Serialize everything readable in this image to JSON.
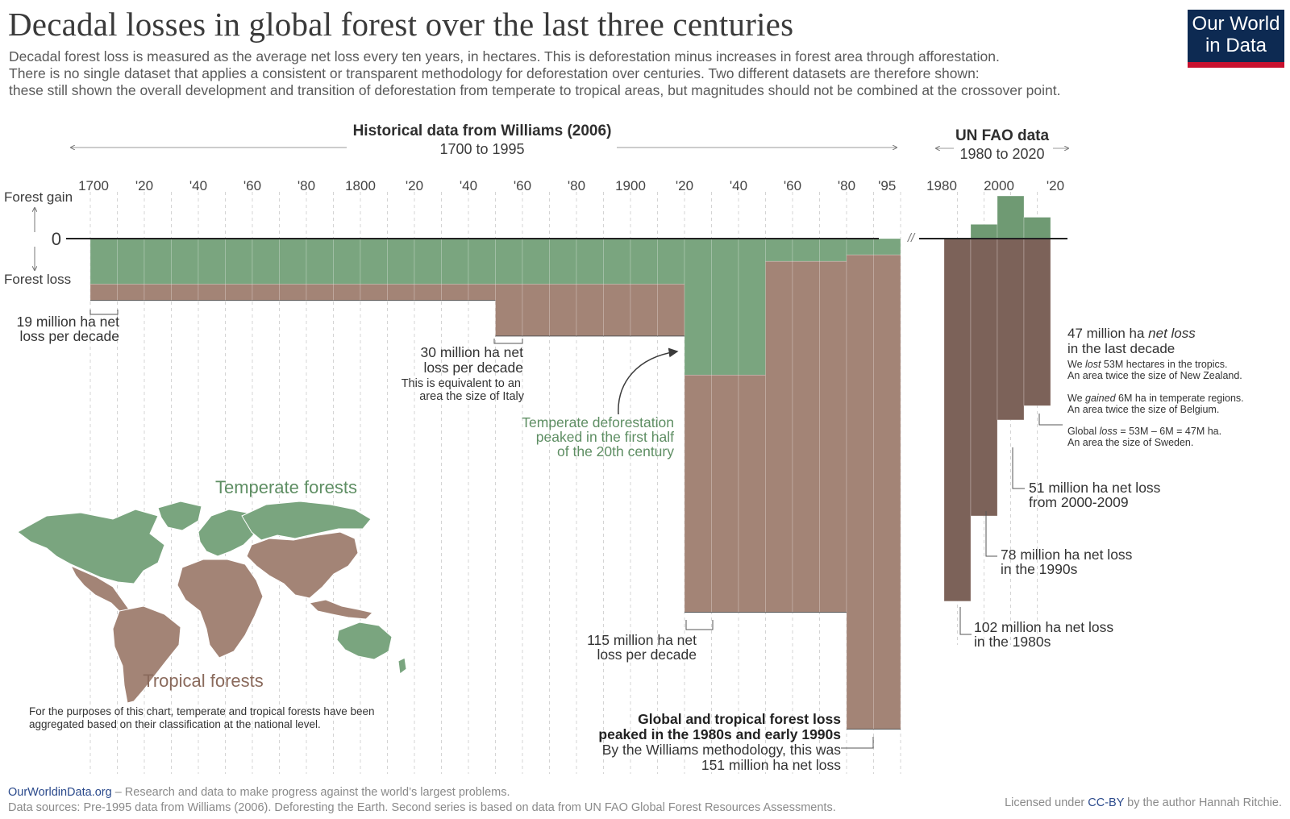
{
  "header": {
    "title": "Decadal losses in global forest over the last three centuries",
    "subtitle_lines": [
      "Decadal forest loss is measured as the average net loss every ten years, in hectares. This is deforestation minus increases in forest area through afforestation.",
      "There is no single dataset that applies a consistent or transparent methodology for deforestation over centuries. Two different datasets are therefore shown:",
      "these still shown the overall development and transition of deforestation from temperate to tropical areas, but magnitudes should not be combined at the crossover point."
    ]
  },
  "logo": {
    "line1": "Our World",
    "line2": "in Data"
  },
  "sections": {
    "williams": {
      "title": "Historical data from Williams (2006)",
      "range": "1700 to 1995"
    },
    "fao": {
      "title": "UN FAO data",
      "range": "1980 to 2020"
    }
  },
  "axis": {
    "gain_label": "Forest gain",
    "loss_label": "Forest loss",
    "zero_label": "0",
    "break_mark": "//"
  },
  "colors": {
    "temperate": "#7aa57f",
    "tropical": "#a38476",
    "fao_bars": "#7c6259",
    "fao_gain": "#6f9a73",
    "annotation_green": "#5e8e63",
    "grid": "#d4d4d4"
  },
  "chart_data": [
    {
      "type": "bar",
      "stacked": true,
      "units": "million hectares net loss per decade",
      "tick_labels": [
        "1700",
        "'20",
        "'40",
        "'60",
        "'80",
        "1800",
        "'20",
        "'40",
        "'60",
        "'80",
        "1900",
        "'20",
        "'40",
        "'60",
        "'80",
        "'95"
      ],
      "categories": [
        "1700",
        "1710",
        "1720",
        "1730",
        "1740",
        "1750",
        "1760",
        "1770",
        "1780",
        "1790",
        "1800",
        "1810",
        "1820",
        "1830",
        "1840",
        "1850",
        "1860",
        "1870",
        "1880",
        "1890",
        "1900",
        "1910",
        "1920",
        "1930",
        "1940",
        "1950",
        "1960",
        "1970",
        "1980",
        "1990"
      ],
      "series": [
        {
          "name": "Temperate forests",
          "values": [
            -14,
            -14,
            -14,
            -14,
            -14,
            -14,
            -14,
            -14,
            -14,
            -14,
            -14,
            -14,
            -14,
            -14,
            -14,
            -14,
            -14,
            -14,
            -14,
            -14,
            -14,
            -14,
            -42,
            -42,
            -42,
            -7,
            -7,
            -7,
            -5,
            -5
          ]
        },
        {
          "name": "Tropical forests",
          "values": [
            -5,
            -5,
            -5,
            -5,
            -5,
            -5,
            -5,
            -5,
            -5,
            -5,
            -5,
            -5,
            -5,
            -5,
            -5,
            -16,
            -16,
            -16,
            -16,
            -16,
            -16,
            -16,
            -73,
            -73,
            -73,
            -108,
            -108,
            -108,
            -146,
            -146
          ]
        }
      ],
      "totals": [
        -19,
        -19,
        -19,
        -19,
        -19,
        -19,
        -19,
        -19,
        -19,
        -19,
        -19,
        -19,
        -19,
        -19,
        -19,
        -30,
        -30,
        -30,
        -30,
        -30,
        -30,
        -30,
        -115,
        -115,
        -115,
        -115,
        -115,
        -115,
        -151,
        -151
      ]
    },
    {
      "type": "bar",
      "units": "million hectares net change per decade",
      "tick_labels": [
        "1980",
        "2000",
        "'20"
      ],
      "categories": [
        "1980",
        "1990",
        "2000",
        "2010"
      ],
      "net": [
        -102,
        -78,
        -51,
        -47
      ],
      "temperate_gain": [
        -2,
        4,
        12,
        6
      ]
    }
  ],
  "annotations": {
    "a19": {
      "line1": "19 million ha net",
      "line2": "loss per decade"
    },
    "a30": {
      "line1": "30 million ha net",
      "line2": "loss per decade",
      "line3": "This is equivalent to an",
      "line4": "area the size of Italy"
    },
    "peak_temperate": {
      "line1": "Temperate deforestation",
      "line2": "peaked in the first half",
      "line3": "of the 20th century"
    },
    "a115": {
      "line1": "115 million ha net",
      "line2": "loss per decade"
    },
    "peak_global": {
      "line1": "Global and tropical forest loss",
      "line2": "peaked in the 1980s and early 1990s",
      "line3": "By the Williams methodology, this was",
      "line4": "151 million ha net loss"
    },
    "a47": {
      "head1": "47 million ha ",
      "head1_em": "net loss",
      "head2": "in the last decade",
      "s1a": "We ",
      "s1em": "lost",
      "s1b": " 53M hectares in the tropics.",
      "s1c": "An area twice the size of New Zealand.",
      "s2a": "We ",
      "s2em": "gained",
      "s2b": " 6M ha in temperate regions.",
      "s2c": "An area twice the size of Belgium.",
      "s3a": "Global ",
      "s3em": "loss",
      "s3b": " = 53M – 6M = 47M ha.",
      "s3c": "An area the size of Sweden."
    },
    "a51": {
      "line1": "51 million ha net loss",
      "line2": "from 2000-2009"
    },
    "a78": {
      "line1": "78 million ha net loss",
      "line2": "in the 1990s"
    },
    "a102": {
      "line1": "102 million ha net loss",
      "line2": "in the 1980s"
    }
  },
  "map": {
    "temperate_label": "Temperate forests",
    "tropical_label": "Tropical forests",
    "note_line1": "For the purposes of this chart, temperate and tropical forests have been",
    "note_line2": "aggregated based on their classification at the national level."
  },
  "footer": {
    "site": "OurWorldinData.org",
    "tagline": " – Research and data to make progress against the world’s largest problems.",
    "sources": "Data sources: Pre-1995 data from Williams (2006). Deforesting the Earth. Second series is based on data from UN FAO Global Forest Resources Assessments.",
    "license_pre": "Licensed under ",
    "license_cc": "CC-BY",
    "license_post": " by the author Hannah Ritchie."
  }
}
